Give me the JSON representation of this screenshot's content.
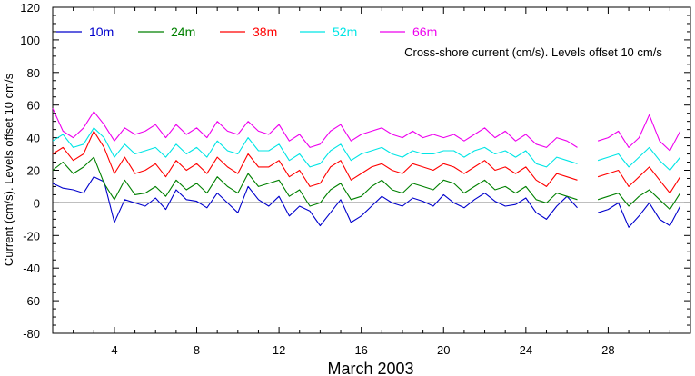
{
  "chart_data": {
    "type": "line",
    "xlabel": "March 2003",
    "ylabel": "Current (cm/s). Levels offset 10 cm/s",
    "annotation": "Cross-shore current (cm/s). Levels offset 10 cm/s",
    "xlim": [
      1,
      32
    ],
    "ylim": [
      -80,
      120
    ],
    "x_ticks": [
      4,
      8,
      12,
      16,
      20,
      24,
      28
    ],
    "y_ticks": [
      -80,
      -60,
      -40,
      -20,
      0,
      20,
      40,
      60,
      80,
      100,
      120
    ],
    "zero_line": 0,
    "grid": false,
    "legend_position": "top-left, horizontal",
    "data_gap": [
      26.8,
      27.1
    ],
    "series": [
      {
        "name": "10m",
        "color": "#0000cc",
        "offset": 0,
        "x": [
          1,
          1.5,
          2,
          2.5,
          3,
          3.5,
          4,
          4.5,
          5,
          5.5,
          6,
          6.5,
          7,
          7.5,
          8,
          8.5,
          9,
          9.5,
          10,
          10.5,
          11,
          11.5,
          12,
          12.5,
          13,
          13.5,
          14,
          14.5,
          15,
          15.5,
          16,
          16.5,
          17,
          17.5,
          18,
          18.5,
          19,
          19.5,
          20,
          20.5,
          21,
          21.5,
          22,
          22.5,
          23,
          23.5,
          24,
          24.5,
          25,
          25.5,
          26,
          26.5,
          27,
          27.5,
          28,
          28.5,
          29,
          29.5,
          30,
          30.5,
          31,
          31.5
        ],
        "values": [
          12,
          9,
          8,
          6,
          16,
          13,
          -12,
          2,
          0,
          -2,
          3,
          -4,
          8,
          2,
          1,
          -3,
          6,
          0,
          -6,
          10,
          2,
          -2,
          4,
          -8,
          -2,
          -5,
          -14,
          -6,
          2,
          -12,
          -8,
          -2,
          4,
          0,
          -2,
          3,
          1,
          -2,
          5,
          0,
          -3,
          2,
          6,
          1,
          -2,
          -1,
          3,
          -6,
          -10,
          -2,
          4,
          -3,
          -9,
          -6,
          -4,
          0,
          -15,
          -8,
          0,
          -10,
          -14,
          -2
        ]
      },
      {
        "name": "24m",
        "color": "#008000",
        "offset": 10,
        "x": [
          1,
          1.5,
          2,
          2.5,
          3,
          3.5,
          4,
          4.5,
          5,
          5.5,
          6,
          6.5,
          7,
          7.5,
          8,
          8.5,
          9,
          9.5,
          10,
          10.5,
          11,
          11.5,
          12,
          12.5,
          13,
          13.5,
          14,
          14.5,
          15,
          15.5,
          16,
          16.5,
          17,
          17.5,
          18,
          18.5,
          19,
          19.5,
          20,
          20.5,
          21,
          21.5,
          22,
          22.5,
          23,
          23.5,
          24,
          24.5,
          25,
          25.5,
          26,
          26.5,
          27,
          27.5,
          28,
          28.5,
          29,
          29.5,
          30,
          30.5,
          31,
          31.5
        ],
        "values": [
          20,
          25,
          18,
          22,
          28,
          12,
          2,
          14,
          5,
          6,
          10,
          4,
          14,
          8,
          12,
          6,
          16,
          10,
          6,
          18,
          10,
          12,
          14,
          4,
          8,
          -2,
          0,
          8,
          12,
          2,
          4,
          10,
          14,
          8,
          6,
          12,
          10,
          8,
          14,
          12,
          6,
          10,
          14,
          8,
          10,
          6,
          10,
          2,
          0,
          6,
          4,
          2,
          0,
          2,
          4,
          6,
          -2,
          4,
          8,
          2,
          -4,
          6
        ]
      },
      {
        "name": "38m",
        "color": "#ff0000",
        "offset": 20,
        "x": [
          1,
          1.5,
          2,
          2.5,
          3,
          3.5,
          4,
          4.5,
          5,
          5.5,
          6,
          6.5,
          7,
          7.5,
          8,
          8.5,
          9,
          9.5,
          10,
          10.5,
          11,
          11.5,
          12,
          12.5,
          13,
          13.5,
          14,
          14.5,
          15,
          15.5,
          16,
          16.5,
          17,
          17.5,
          18,
          18.5,
          19,
          19.5,
          20,
          20.5,
          21,
          21.5,
          22,
          22.5,
          23,
          23.5,
          24,
          24.5,
          25,
          25.5,
          26,
          26.5,
          27,
          27.5,
          28,
          28.5,
          29,
          29.5,
          30,
          30.5,
          31,
          31.5
        ],
        "values": [
          30,
          34,
          26,
          30,
          44,
          34,
          18,
          28,
          18,
          20,
          24,
          16,
          26,
          20,
          24,
          18,
          28,
          22,
          18,
          30,
          22,
          22,
          26,
          16,
          20,
          10,
          12,
          22,
          26,
          14,
          18,
          22,
          24,
          20,
          18,
          24,
          22,
          20,
          24,
          22,
          18,
          22,
          26,
          20,
          22,
          18,
          22,
          14,
          10,
          18,
          16,
          14,
          14,
          16,
          18,
          20,
          10,
          16,
          22,
          14,
          6,
          16
        ]
      },
      {
        "name": "52m",
        "color": "#00e5e5",
        "offset": 30,
        "x": [
          1,
          1.5,
          2,
          2.5,
          3,
          3.5,
          4,
          4.5,
          5,
          5.5,
          6,
          6.5,
          7,
          7.5,
          8,
          8.5,
          9,
          9.5,
          10,
          10.5,
          11,
          11.5,
          12,
          12.5,
          13,
          13.5,
          14,
          14.5,
          15,
          15.5,
          16,
          16.5,
          17,
          17.5,
          18,
          18.5,
          19,
          19.5,
          20,
          20.5,
          21,
          21.5,
          22,
          22.5,
          23,
          23.5,
          24,
          24.5,
          25,
          25.5,
          26,
          26.5,
          27,
          27.5,
          28,
          28.5,
          29,
          29.5,
          30,
          30.5,
          31,
          31.5
        ],
        "values": [
          38,
          42,
          34,
          36,
          46,
          40,
          28,
          36,
          30,
          32,
          34,
          28,
          36,
          30,
          34,
          28,
          38,
          32,
          30,
          40,
          32,
          32,
          36,
          26,
          30,
          22,
          24,
          32,
          36,
          26,
          30,
          32,
          34,
          30,
          28,
          32,
          30,
          30,
          32,
          32,
          28,
          32,
          34,
          30,
          32,
          28,
          32,
          24,
          22,
          28,
          26,
          24,
          24,
          26,
          28,
          30,
          22,
          28,
          34,
          26,
          20,
          28
        ]
      },
      {
        "name": "66m",
        "color": "#ee00ee",
        "offset": 40,
        "x": [
          1,
          1.5,
          2,
          2.5,
          3,
          3.5,
          4,
          4.5,
          5,
          5.5,
          6,
          6.5,
          7,
          7.5,
          8,
          8.5,
          9,
          9.5,
          10,
          10.5,
          11,
          11.5,
          12,
          12.5,
          13,
          13.5,
          14,
          14.5,
          15,
          15.5,
          16,
          16.5,
          17,
          17.5,
          18,
          18.5,
          19,
          19.5,
          20,
          20.5,
          21,
          21.5,
          22,
          22.5,
          23,
          23.5,
          24,
          24.5,
          25,
          25.5,
          26,
          26.5,
          27,
          27.5,
          28,
          28.5,
          29,
          29.5,
          30,
          30.5,
          31,
          31.5
        ],
        "values": [
          58,
          44,
          40,
          46,
          56,
          48,
          38,
          46,
          42,
          44,
          48,
          40,
          48,
          42,
          46,
          40,
          50,
          44,
          42,
          50,
          44,
          42,
          48,
          38,
          42,
          34,
          36,
          44,
          48,
          38,
          42,
          44,
          46,
          42,
          40,
          44,
          40,
          42,
          40,
          42,
          38,
          42,
          46,
          40,
          44,
          38,
          42,
          36,
          34,
          40,
          38,
          34,
          40,
          38,
          40,
          44,
          34,
          40,
          54,
          38,
          32,
          44
        ]
      }
    ]
  }
}
